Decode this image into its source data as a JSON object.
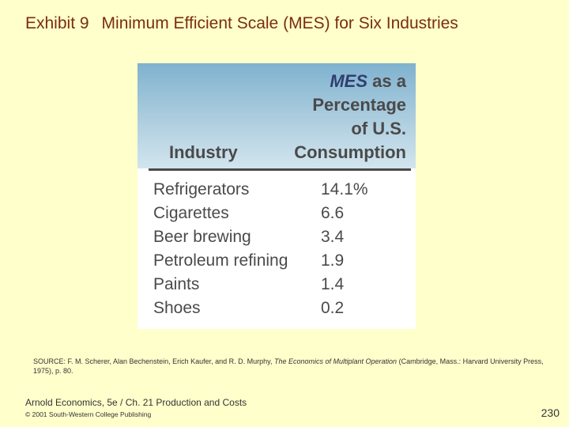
{
  "slide": {
    "exhibit_label": "Exhibit 9",
    "title": "Minimum Efficient Scale (MES) for Six Industries"
  },
  "table": {
    "header_industry": "Industry",
    "header_mes_abbr": "MES",
    "header_mes_line1_rest": "as a",
    "header_mes_line2": "Percentage",
    "header_mes_line3": "of U.S.",
    "header_mes_line4": "Consumption",
    "rows": [
      {
        "industry": "Refrigerators",
        "value": "14.1%"
      },
      {
        "industry": "Cigarettes",
        "value": "6.6"
      },
      {
        "industry": "Beer brewing",
        "value": "3.4"
      },
      {
        "industry": "Petroleum refining",
        "value": "1.9"
      },
      {
        "industry": "Paints",
        "value": "1.4"
      },
      {
        "industry": "Shoes",
        "value": "0.2"
      }
    ]
  },
  "source": {
    "prefix": "SOURCE: F. M. Scherer, Alan Bechenstein, Erich Kaufer, and R. D. Murphy,",
    "book_title": "The Economics of Multiplant Operation",
    "suffix": "(Cambridge, Mass.: Harvard University Press, 1975), p. 80."
  },
  "footer": {
    "course": "Arnold Economics, 5e / Ch. 21  Production and Costs",
    "copyright": "© 2001 South-Western College Publishing",
    "page_number": "230"
  }
}
